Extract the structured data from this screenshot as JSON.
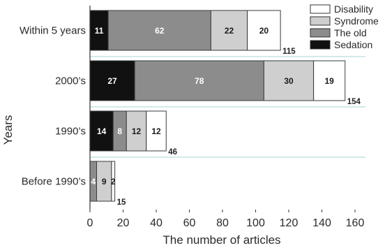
{
  "chart_data": {
    "type": "bar",
    "orientation": "horizontal",
    "stacked": true,
    "categories": [
      "Within 5 years",
      "2000’s",
      "1990’s",
      "Before 1990’s"
    ],
    "series": [
      {
        "name": "Sedation",
        "color": "#111111",
        "values": [
          11,
          27,
          14,
          0
        ]
      },
      {
        "name": "The old",
        "color": "#8c8c8c",
        "values": [
          62,
          78,
          8,
          4
        ]
      },
      {
        "name": "Syndrome",
        "color": "#cfcfcf",
        "values": [
          22,
          30,
          12,
          9
        ]
      },
      {
        "name": "Disability",
        "color": "#ffffff",
        "values": [
          20,
          19,
          12,
          2
        ]
      }
    ],
    "totals": [
      115,
      154,
      46,
      15
    ],
    "xlabel": "The number of articles",
    "ylabel": "Years",
    "xlim": [
      0,
      160
    ],
    "xticks": [
      0,
      20,
      40,
      60,
      80,
      100,
      120,
      140,
      160
    ],
    "legend_position": "top-right",
    "legend_order": [
      "Disability",
      "Syndrome",
      "The old",
      "Sedation"
    ],
    "grid": false
  }
}
